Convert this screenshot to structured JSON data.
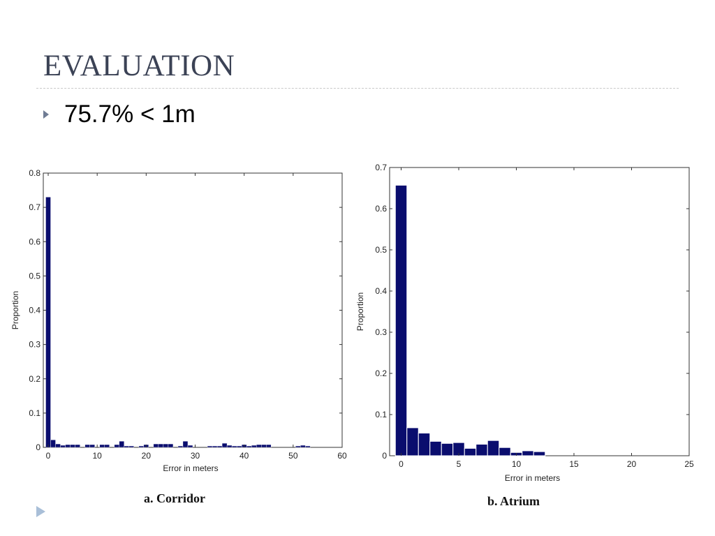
{
  "slide": {
    "title": "EVALUATION",
    "bullet": "75.7% < 1m",
    "bullet_icon": "triangle-bullet-icon",
    "nav_icon": "next-slide-icon",
    "accent_color": "#6f7c94",
    "bar_color": "#0a0d6e"
  },
  "captions": {
    "corridor": "a. Corridor",
    "atrium": "b. Atrium"
  },
  "chart_data": [
    {
      "type": "bar",
      "id": "corridor",
      "title": "",
      "xlabel": "Error in meters",
      "ylabel": "Proportion",
      "xlim": [
        -1,
        60
      ],
      "ylim": [
        0,
        0.8
      ],
      "xticks": [
        0,
        10,
        20,
        30,
        40,
        50,
        60
      ],
      "xtick_labels": [
        "0",
        "10",
        "20",
        "30",
        "40",
        "50",
        "60"
      ],
      "yticks": [
        0,
        0.1,
        0.2,
        0.3,
        0.4,
        0.5,
        0.6,
        0.7,
        0.8
      ],
      "ytick_labels": [
        "0",
        "0.1",
        "0.2",
        "0.3",
        "0.4",
        "0.5",
        "0.6",
        "0.7",
        "0.8"
      ],
      "grid": false,
      "bar_width": 1,
      "x": [
        0,
        1,
        2,
        3,
        4,
        5,
        6,
        8,
        9,
        11,
        12,
        14,
        15,
        16,
        17,
        19,
        20,
        22,
        23,
        24,
        25,
        27,
        28,
        29,
        33,
        34,
        35,
        36,
        37,
        38,
        39,
        40,
        41,
        42,
        43,
        44,
        45,
        51,
        52,
        53
      ],
      "values": [
        0.73,
        0.022,
        0.01,
        0.006,
        0.008,
        0.008,
        0.008,
        0.008,
        0.008,
        0.008,
        0.008,
        0.008,
        0.018,
        0.004,
        0.004,
        0.004,
        0.008,
        0.01,
        0.01,
        0.01,
        0.01,
        0.004,
        0.018,
        0.006,
        0.004,
        0.004,
        0.004,
        0.012,
        0.006,
        0.004,
        0.004,
        0.008,
        0.004,
        0.006,
        0.008,
        0.008,
        0.008,
        0.004,
        0.006,
        0.004
      ]
    },
    {
      "type": "bar",
      "id": "atrium",
      "title": "",
      "xlabel": "Error in meters",
      "ylabel": "Proportion",
      "xlim": [
        -1,
        25
      ],
      "ylim": [
        0,
        0.7
      ],
      "xticks": [
        0,
        5,
        10,
        15,
        20,
        25
      ],
      "xtick_labels": [
        "0",
        "5",
        "10",
        "15",
        "20",
        "25"
      ],
      "yticks": [
        0,
        0.1,
        0.2,
        0.3,
        0.4,
        0.5,
        0.6,
        0.7
      ],
      "ytick_labels": [
        "0",
        "0.1",
        "0.2",
        "0.3",
        "0.4",
        "0.5",
        "0.6",
        "0.7"
      ],
      "grid": false,
      "bar_width": 1,
      "x": [
        0,
        1,
        2,
        3,
        4,
        5,
        6,
        7,
        8,
        9,
        10,
        11,
        12,
        13
      ],
      "values": [
        0.657,
        0.068,
        0.055,
        0.035,
        0.03,
        0.032,
        0.018,
        0.028,
        0.037,
        0.02,
        0.008,
        0.012,
        0.01,
        0.0
      ]
    }
  ]
}
